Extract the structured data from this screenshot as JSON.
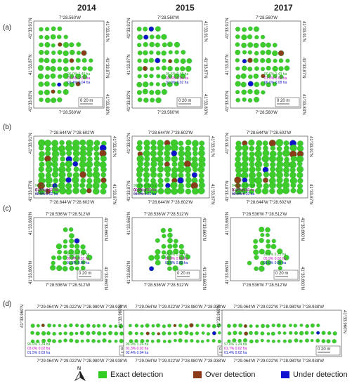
{
  "years": [
    "2014",
    "2015",
    "2017"
  ],
  "rows": [
    {
      "label": "(a)",
      "coord_top": "7°28.560'W",
      "coord_bottom": "7°28.560'W",
      "coord_left": [
        "41°33.91'N",
        "41°33.87'N",
        "41°33.83'N"
      ],
      "coord_right": [
        "41°33.91'N",
        "41°33.87'N",
        "41°33.83'N"
      ],
      "scale": "0  20 m",
      "stats": [
        [
          "96.0%  1.46 ha",
          "01.6%  0.02 ha",
          "02.4%  0.04 ha"
        ],
        [
          "96.5%  1.46 ha",
          "02.6%  0.04 ha",
          "01.0%  0.02 ha"
        ],
        [
          "90.6%  1.43 ha",
          "01.0%  0.02 ha",
          "06.0%  0.08 ha"
        ]
      ]
    },
    {
      "label": "(b)",
      "coord_top": "7°28.644'W   7°28.602'W",
      "coord_bottom": "7°28.644'W   7°28.602'W",
      "coord_left": [
        "41°33.91'N",
        "41°33.87'N"
      ],
      "coord_right": [
        "41°33.91'N",
        "41°33.87'N"
      ],
      "scale": "0  20 m",
      "stats": [
        [
          "96.1%  0.69 ha",
          "01.0%  0.02 ha",
          "02.9%  0.02 ha"
        ],
        [
          "96.2%  0.65 ha",
          "02.9%  0.02 ha",
          "01.0%  0.02 ha"
        ],
        [
          "94.8%  0.67 ha",
          "01.3%  0.02 ha",
          "02.9%  0.03 ha"
        ]
      ]
    },
    {
      "label": "(c)",
      "coord_top": "7°28.536'W   7°28.512'W",
      "coord_bottom": "7°28.536'W   7°28.512'W",
      "coord_left": [
        "41°33.660'N",
        "41°33.660'N"
      ],
      "coord_right": [
        "41°33.660'N",
        "41°33.660'N"
      ],
      "scale": "0  20 m",
      "stats": [
        [
          "95.9%  0.26 ha",
          "02.9%  0.01 ha",
          "01.2%  0.00 ha"
        ],
        [
          "95.1%  0.25 ha",
          "03.9%  0.01 ha",
          "01.0%  0.00 ha"
        ],
        [
          "93.1%  0.25 ha",
          "05.9%  0.02 ha",
          "01.0%  0.00 ha"
        ]
      ]
    },
    {
      "label": "(d)",
      "coord_top": "7°29.064'W   7°29.022'W   7°28.980'W   7°28.938'W",
      "coord_bottom": "7°29.064'W   7°29.022'W   7°28.980'W   7°28.938'W",
      "coord_left": [
        "41°33.960'N"
      ],
      "coord_right": [
        "41°33.960'N"
      ],
      "scale": "0  20 m",
      "stats": [
        [
          "96.9%  1.24 ha",
          "03.0%  0.02 ha",
          "01.5%  0.03 ha"
        ],
        [
          "96.9%  1.24 ha",
          "01.3%  0.03 ha",
          "02.4%  0.04 ha"
        ],
        [
          "97.0%  1.24 ha",
          "01.7%  0.02 ha",
          "01.4%  0.02 ha"
        ]
      ]
    }
  ],
  "north": "N",
  "legend": [
    {
      "label": "Exact detection",
      "color": "#33cc22"
    },
    {
      "label": "Over detection",
      "color": "#8b3a1a"
    },
    {
      "label": "Under detection",
      "color": "#1010d0"
    }
  ],
  "colors": {
    "exact": "#3dcc2a",
    "exact_dark": "#2a9a1a",
    "over": "#8b3a1a",
    "under": "#1010d0",
    "bg": "#b8f0e8",
    "stat_exact": "#1a9a1a",
    "stat_over": "#c000c0",
    "stat_under": "#1010c0"
  }
}
